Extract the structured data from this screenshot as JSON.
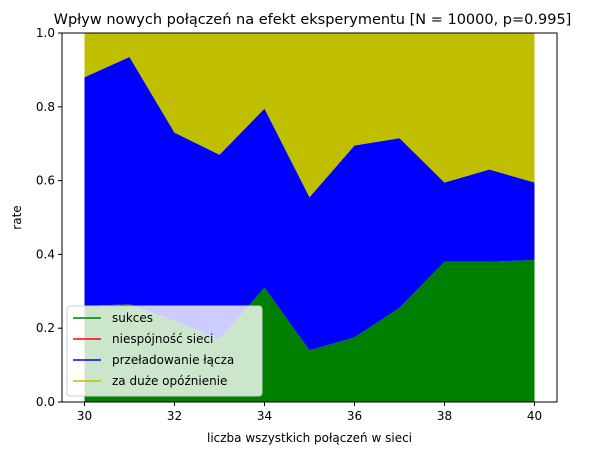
{
  "chart_data": {
    "type": "area",
    "stacked": true,
    "title": "Wpływ nowych połączeń na efekt eksperymentu [N = 10000, p=0.995]",
    "xlabel": "liczba wszystkich połączeń w sieci",
    "ylabel": "rate",
    "xlim": [
      29.5,
      40.5
    ],
    "ylim": [
      0.0,
      1.0
    ],
    "xticks": [
      30,
      32,
      34,
      36,
      38,
      40
    ],
    "yticks": [
      0.0,
      0.2,
      0.4,
      0.6,
      0.8,
      1.0
    ],
    "xtick_labels": [
      "30",
      "32",
      "34",
      "36",
      "38",
      "40"
    ],
    "ytick_labels": [
      "0.0",
      "0.2",
      "0.4",
      "0.6",
      "0.8",
      "1.0"
    ],
    "grid": false,
    "legend_position": "lower-left",
    "x": [
      30,
      31,
      32,
      33,
      34,
      35,
      36,
      37,
      38,
      39,
      40
    ],
    "series": [
      {
        "name": "sukces",
        "color": "#008000",
        "values": [
          0.26,
          0.265,
          0.22,
          0.17,
          0.31,
          0.14,
          0.175,
          0.255,
          0.38,
          0.38,
          0.385
        ]
      },
      {
        "name": "niespójność sieci",
        "color": "#ff0000",
        "values": [
          0,
          0,
          0,
          0,
          0,
          0,
          0,
          0,
          0,
          0,
          0
        ]
      },
      {
        "name": "przeładowanie łącza",
        "color": "#0000ff",
        "values": [
          0.62,
          0.67,
          0.51,
          0.5,
          0.485,
          0.415,
          0.52,
          0.46,
          0.215,
          0.25,
          0.21
        ]
      },
      {
        "name": "za duże opóźnienie",
        "color": "#bfbf00",
        "values": [
          0.12,
          0.065,
          0.27,
          0.33,
          0.205,
          0.445,
          0.305,
          0.285,
          0.405,
          0.37,
          0.405
        ]
      }
    ]
  }
}
